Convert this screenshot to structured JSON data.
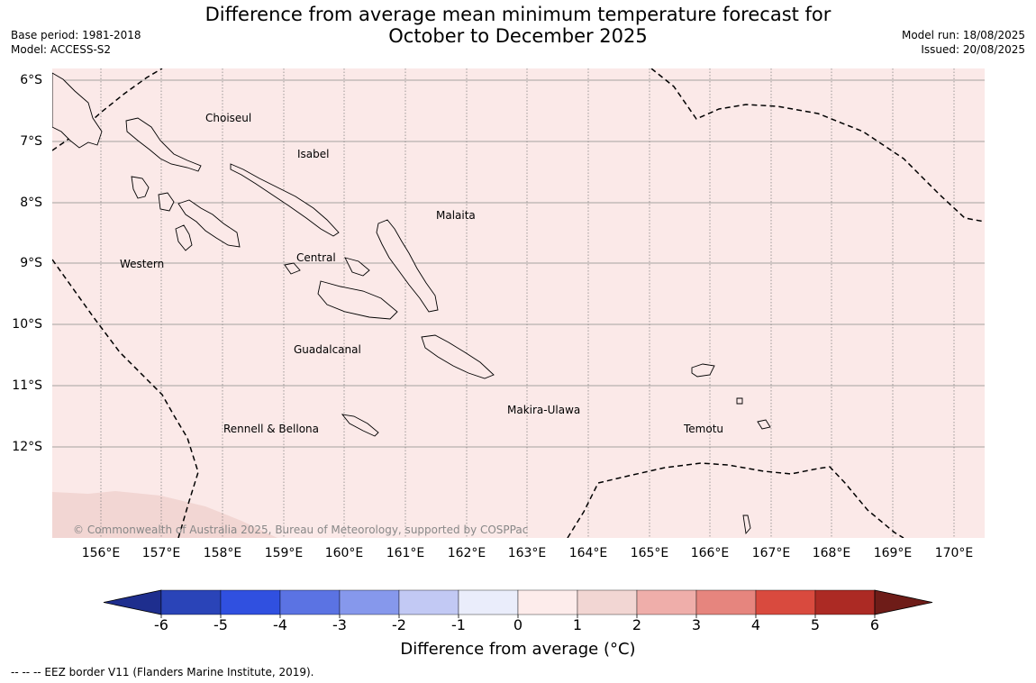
{
  "header": {
    "title_line1": "Difference from average mean minimum temperature forecast for",
    "title_line2": "October to December 2025",
    "base_period": "Base period: 1981-2018",
    "model": "Model: ACCESS-S2",
    "model_run": "Model run: 18/08/2025",
    "issued": "Issued: 20/08/2025"
  },
  "map": {
    "background_color": "#fbe9e8",
    "southern_patch_color": "#f2d6d3",
    "gridline_color": "#888888",
    "lon_labels": [
      "156°E",
      "157°E",
      "158°E",
      "159°E",
      "160°E",
      "161°E",
      "162°E",
      "163°E",
      "164°E",
      "165°E",
      "166°E",
      "167°E",
      "168°E",
      "169°E",
      "170°E"
    ],
    "lat_labels": [
      "6°S",
      "7°S",
      "8°S",
      "9°S",
      "10°S",
      "11°S",
      "12°S"
    ],
    "province_labels": [
      {
        "name": "Choiseul"
      },
      {
        "name": "Isabel"
      },
      {
        "name": "Malaita"
      },
      {
        "name": "Western"
      },
      {
        "name": "Central"
      },
      {
        "name": "Guadalcanal"
      },
      {
        "name": "Makira-Ulawa"
      },
      {
        "name": "Temotu"
      },
      {
        "name": "Rennell & Bellona"
      }
    ],
    "copyright": "© Commonwealth of Australia 2025, Bureau of Meteorology, supported by COSPPac"
  },
  "colorbar": {
    "ticks": [
      "-6",
      "-5",
      "-4",
      "-3",
      "-2",
      "-1",
      "0",
      "1",
      "2",
      "3",
      "4",
      "5",
      "6"
    ],
    "colors": [
      "#1e2e8e",
      "#2a44b8",
      "#3050e0",
      "#5b73e3",
      "#8698ec",
      "#c2c9f4",
      "#eaedfb",
      "#fdeceb",
      "#f2d6d3",
      "#efaeaa",
      "#e6857e",
      "#d94a3e",
      "#ac2a24",
      "#6e1c18"
    ],
    "title": "Difference from average (",
    "title_unit": "°C)"
  },
  "footnote": "--  --  -- EEZ border V11 (Flanders Marine Institute, 2019)."
}
